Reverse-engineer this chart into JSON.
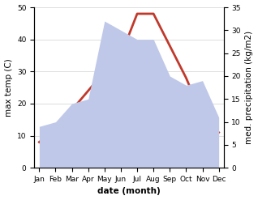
{
  "months": [
    "Jan",
    "Feb",
    "Mar",
    "Apr",
    "May",
    "Jun",
    "Jul",
    "Aug",
    "Sep",
    "Oct",
    "Nov",
    "Dec"
  ],
  "max_temp": [
    8,
    12,
    18,
    24,
    30,
    35,
    48,
    48,
    38,
    28,
    16,
    11
  ],
  "precipitation": [
    9,
    10,
    14,
    15,
    32,
    30,
    28,
    28,
    20,
    18,
    19,
    11
  ],
  "temp_color": "#c0392b",
  "precip_fill_color": "#bfc8e8",
  "temp_ylim": [
    0,
    50
  ],
  "precip_ylim": [
    0,
    35
  ],
  "temp_yticks": [
    0,
    10,
    20,
    30,
    40,
    50
  ],
  "precip_yticks": [
    0,
    5,
    10,
    15,
    20,
    25,
    30,
    35
  ],
  "xlabel": "date (month)",
  "ylabel_left": "max temp (C)",
  "ylabel_right": "med. precipitation (kg/m2)",
  "label_fontsize": 7.5,
  "tick_fontsize": 6.5
}
